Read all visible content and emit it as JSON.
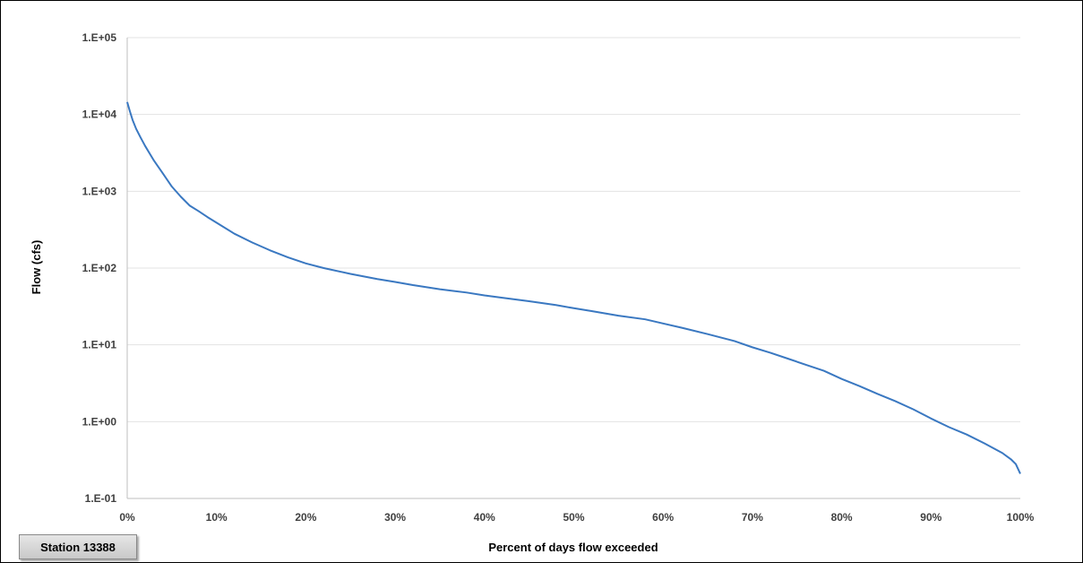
{
  "station_label": "Station 13388",
  "chart_data": {
    "type": "line",
    "xlabel": "Percent of days flow exceeded",
    "ylabel": "Flow (cfs)",
    "x_scale": "linear",
    "y_scale": "log",
    "xlim": [
      0,
      100
    ],
    "ylim": [
      0.1,
      100000
    ],
    "grid": true,
    "x_ticks": [
      0,
      10,
      20,
      30,
      40,
      50,
      60,
      70,
      80,
      90,
      100
    ],
    "x_tick_labels": [
      "0%",
      "10%",
      "20%",
      "30%",
      "40%",
      "50%",
      "60%",
      "70%",
      "80%",
      "90%",
      "100%"
    ],
    "y_ticks": [
      0.1,
      1,
      10,
      100,
      1000,
      10000,
      100000
    ],
    "y_tick_labels": [
      "1.E-01",
      "1.E+00",
      "1.E+01",
      "1.E+02",
      "1.E+03",
      "1.E+04",
      "1.E+05"
    ],
    "series": [
      {
        "color": "#3a78c1",
        "x": [
          0,
          0.3,
          0.6,
          1,
          1.5,
          2,
          3,
          4,
          5,
          6,
          7,
          8,
          9,
          10,
          12,
          14,
          16,
          18,
          20,
          22,
          25,
          28,
          30,
          32,
          35,
          38,
          40,
          42,
          45,
          48,
          50,
          52,
          55,
          58,
          60,
          62,
          65,
          68,
          70,
          72,
          74,
          76,
          78,
          80,
          82,
          84,
          86,
          88,
          90,
          92,
          94,
          96,
          98,
          99,
          99.5,
          100
        ],
        "y": [
          14500,
          11000,
          8500,
          6500,
          5000,
          3900,
          2500,
          1700,
          1150,
          850,
          650,
          550,
          460,
          390,
          280,
          215,
          170,
          138,
          115,
          100,
          84,
          72,
          66,
          60,
          53,
          48,
          44,
          41,
          37,
          33,
          30,
          27.5,
          24,
          21.5,
          19,
          16.8,
          13.8,
          11.2,
          9.3,
          7.9,
          6.6,
          5.5,
          4.6,
          3.6,
          2.9,
          2.3,
          1.85,
          1.45,
          1.1,
          0.85,
          0.68,
          0.52,
          0.39,
          0.32,
          0.28,
          0.21
        ]
      }
    ]
  }
}
